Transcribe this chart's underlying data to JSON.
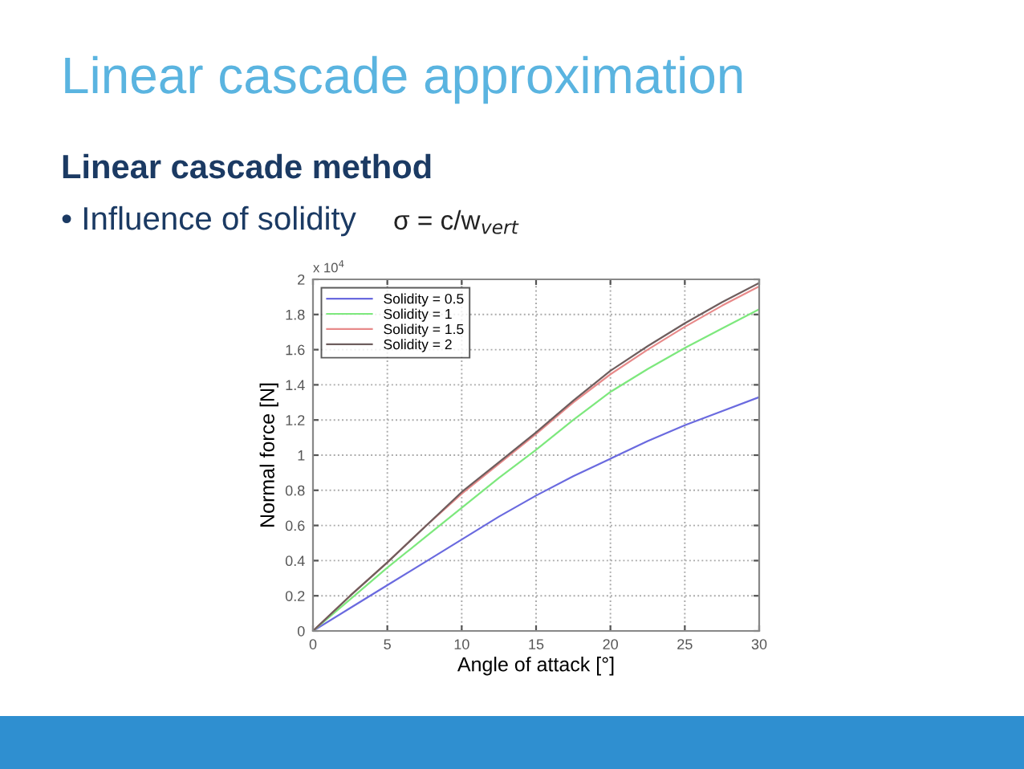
{
  "chart_data": {
    "type": "line",
    "title": "Linear cascade approximation",
    "subtitle": "Linear cascade method",
    "annotations": [
      "• Influence of solidity",
      "σ = c/w$_{vert}$",
      "x 10$^{4}$"
    ],
    "xlabel": "Angle of attack [°]",
    "ylabel": "Normal force [N]",
    "x": [
      0,
      2.5,
      5,
      7.5,
      10,
      12.5,
      15,
      17.5,
      20,
      22.5,
      25,
      27.5,
      30
    ],
    "series": [
      {
        "name": "Solidity = 0.5",
        "color": "#6a6adf",
        "values": [
          0,
          0.13,
          0.26,
          0.39,
          0.52,
          0.65,
          0.77,
          0.88,
          0.98,
          1.08,
          1.17,
          1.25,
          1.33
        ]
      },
      {
        "name": "Solidity = 1",
        "color": "#7de87d",
        "values": [
          0,
          0.18,
          0.36,
          0.53,
          0.7,
          0.87,
          1.03,
          1.2,
          1.36,
          1.49,
          1.61,
          1.72,
          1.83
        ]
      },
      {
        "name": "Solidity = 1.5",
        "color": "#e88a8a",
        "values": [
          0,
          0.2,
          0.39,
          0.59,
          0.78,
          0.95,
          1.12,
          1.3,
          1.46,
          1.6,
          1.73,
          1.85,
          1.96
        ]
      },
      {
        "name": "Solidity = 2",
        "color": "#6e5e5e",
        "values": [
          0,
          0.2,
          0.39,
          0.59,
          0.79,
          0.96,
          1.13,
          1.31,
          1.48,
          1.62,
          1.75,
          1.87,
          1.98
        ]
      }
    ],
    "xlim": [
      0,
      30
    ],
    "ylim": [
      0,
      2
    ],
    "xticks": [
      0,
      5,
      10,
      15,
      20,
      25,
      30
    ],
    "yticks": [
      0,
      0.2,
      0.4,
      0.6,
      0.8,
      1,
      1.2,
      1.4,
      1.6,
      1.8,
      2
    ],
    "grid": true,
    "legend": "top left",
    "line_style": "solid"
  }
}
